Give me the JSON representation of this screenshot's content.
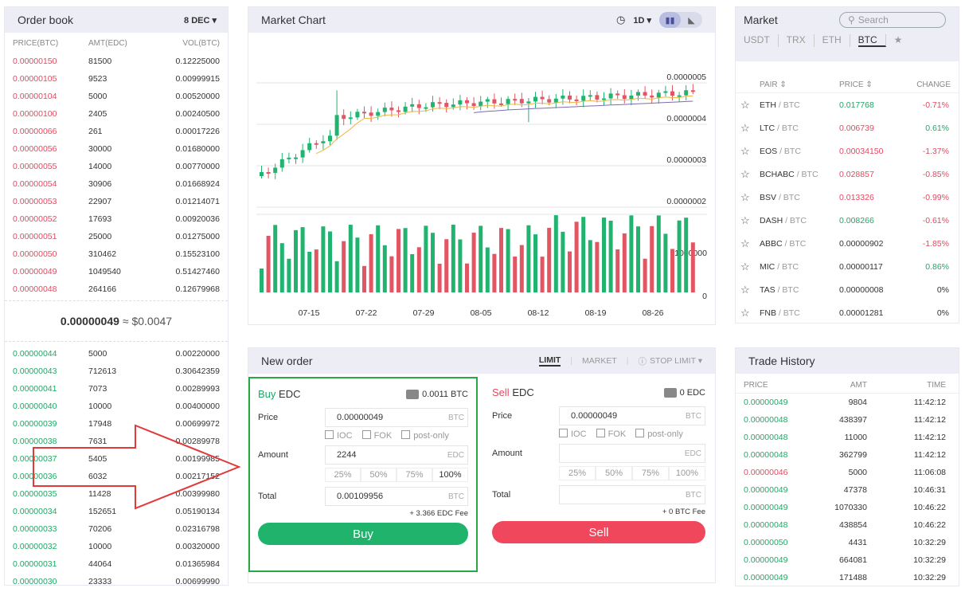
{
  "orderbook": {
    "title": "Order book",
    "decimals": "8 DEC ▾",
    "cols": [
      "PRICE(BTC)",
      "AMT(EDC)",
      "VOL(BTC)"
    ],
    "asks": [
      [
        "0.00000150",
        "81500",
        "0.12225000"
      ],
      [
        "0.00000105",
        "9523",
        "0.00999915"
      ],
      [
        "0.00000104",
        "5000",
        "0.00520000"
      ],
      [
        "0.00000100",
        "2405",
        "0.00240500"
      ],
      [
        "0.00000066",
        "261",
        "0.00017226"
      ],
      [
        "0.00000056",
        "30000",
        "0.01680000"
      ],
      [
        "0.00000055",
        "14000",
        "0.00770000"
      ],
      [
        "0.00000054",
        "30906",
        "0.01668924"
      ],
      [
        "0.00000053",
        "22907",
        "0.01214071"
      ],
      [
        "0.00000052",
        "17693",
        "0.00920036"
      ],
      [
        "0.00000051",
        "25000",
        "0.01275000"
      ],
      [
        "0.00000050",
        "310462",
        "0.15523100"
      ],
      [
        "0.00000049",
        "1049540",
        "0.51427460"
      ],
      [
        "0.00000048",
        "264166",
        "0.12679968"
      ]
    ],
    "last_price": "0.00000049",
    "last_usd": "≈ $0.0047",
    "bids": [
      [
        "0.00000044",
        "5000",
        "0.00220000"
      ],
      [
        "0.00000043",
        "712613",
        "0.30642359"
      ],
      [
        "0.00000041",
        "7073",
        "0.00289993"
      ],
      [
        "0.00000040",
        "10000",
        "0.00400000"
      ],
      [
        "0.00000039",
        "17948",
        "0.00699972"
      ],
      [
        "0.00000038",
        "7631",
        "0.00289978"
      ],
      [
        "0.00000037",
        "5405",
        "0.00199985"
      ],
      [
        "0.00000036",
        "6032",
        "0.00217152"
      ],
      [
        "0.00000035",
        "11428",
        "0.00399980"
      ],
      [
        "0.00000034",
        "152651",
        "0.05190134"
      ],
      [
        "0.00000033",
        "70206",
        "0.02316798"
      ],
      [
        "0.00000032",
        "10000",
        "0.00320000"
      ],
      [
        "0.00000031",
        "44064",
        "0.01365984"
      ],
      [
        "0.00000030",
        "23333",
        "0.00699990"
      ]
    ]
  },
  "chart": {
    "title": "Market Chart",
    "interval": "1D ▾",
    "clock_icon": "clock-icon",
    "price_ticks": [
      "0.0000005",
      "0.0000004",
      "0.0000003",
      "0.0000002"
    ],
    "volume_ticks": [
      "1000000",
      "0"
    ],
    "date_ticks": [
      "07-15",
      "07-22",
      "07-29",
      "08-05",
      "08-12",
      "08-19",
      "08-26"
    ]
  },
  "chart_data": {
    "type": "candlestick",
    "ohlc_approx_start": 2.5e-07,
    "up_color": "#21b36f",
    "down_color": "#e25563"
  },
  "market": {
    "title": "Market",
    "search_placeholder": "Search",
    "tabs": [
      "USDT",
      "TRX",
      "ETH",
      "BTC",
      "★"
    ],
    "active_tab": "BTC",
    "cols": [
      "PAIR",
      "PRICE",
      "CHANGE"
    ],
    "rows": [
      {
        "base": "ETH",
        "quote": "/ BTC",
        "price": "0.017768",
        "change": "-0.71%",
        "up": true
      },
      {
        "base": "LTC",
        "quote": "/ BTC",
        "price": "0.006739",
        "change": "0.61%",
        "up": false
      },
      {
        "base": "EOS",
        "quote": "/ BTC",
        "price": "0.00034150",
        "change": "-1.37%",
        "up": false
      },
      {
        "base": "BCHABC",
        "quote": "/ BTC",
        "price": "0.028857",
        "change": "-0.85%",
        "up": false
      },
      {
        "base": "BSV",
        "quote": "/ BTC",
        "price": "0.013326",
        "change": "-0.99%",
        "up": false
      },
      {
        "base": "DASH",
        "quote": "/ BTC",
        "price": "0.008266",
        "change": "-0.61%",
        "up": true
      },
      {
        "base": "ABBC",
        "quote": "/ BTC",
        "price": "0.00000902",
        "change": "-1.85%",
        "up": null
      },
      {
        "base": "MIC",
        "quote": "/ BTC",
        "price": "0.00000117",
        "change": "0.86%",
        "up": null
      },
      {
        "base": "TAS",
        "quote": "/ BTC",
        "price": "0.00000008",
        "change": "0%",
        "up": null
      },
      {
        "base": "FNB",
        "quote": "/ BTC",
        "price": "0.00001281",
        "change": "0%",
        "up": null
      }
    ]
  },
  "neworder": {
    "title": "New order",
    "tabs": {
      "limit": "LIMIT",
      "market": "MARKET",
      "stop": "STOP LIMIT ▾"
    },
    "buy": {
      "side": "Buy",
      "asset": "EDC",
      "balance": "0.0011 BTC",
      "price_label": "Price",
      "price": "0.00000049",
      "price_unit": "BTC",
      "amount_label": "Amount",
      "amount": "2244",
      "amount_unit": "EDC",
      "total_label": "Total",
      "total": "0.00109956",
      "total_unit": "BTC",
      "fee": "+ 3.366 EDC Fee",
      "button": "Buy"
    },
    "sell": {
      "side": "Sell",
      "asset": "EDC",
      "balance": "0 EDC",
      "price_label": "Price",
      "price": "0.00000049",
      "price_unit": "BTC",
      "amount_label": "Amount",
      "amount": "",
      "amount_unit": "EDC",
      "total_label": "Total",
      "total": "",
      "total_unit": "BTC",
      "fee": "+ 0 BTC Fee",
      "button": "Sell"
    },
    "checks": [
      "IOC",
      "FOK",
      "post-only"
    ],
    "pcts": [
      "25%",
      "50%",
      "75%",
      "100%"
    ]
  },
  "history": {
    "title": "Trade History",
    "cols": [
      "PRICE",
      "AMT",
      "TIME"
    ],
    "rows": [
      [
        "0.00000049",
        "9804",
        "11:42:12",
        "g"
      ],
      [
        "0.00000048",
        "438397",
        "11:42:12",
        "g"
      ],
      [
        "0.00000048",
        "11000",
        "11:42:12",
        "g"
      ],
      [
        "0.00000048",
        "362799",
        "11:42:12",
        "g"
      ],
      [
        "0.00000046",
        "5000",
        "11:06:08",
        "r"
      ],
      [
        "0.00000049",
        "47378",
        "10:46:31",
        "g"
      ],
      [
        "0.00000049",
        "1070330",
        "10:46:22",
        "g"
      ],
      [
        "0.00000048",
        "438854",
        "10:46:22",
        "g"
      ],
      [
        "0.00000050",
        "4431",
        "10:32:29",
        "g"
      ],
      [
        "0.00000049",
        "664081",
        "10:32:29",
        "g"
      ],
      [
        "0.00000049",
        "171488",
        "10:32:29",
        "g"
      ]
    ]
  }
}
